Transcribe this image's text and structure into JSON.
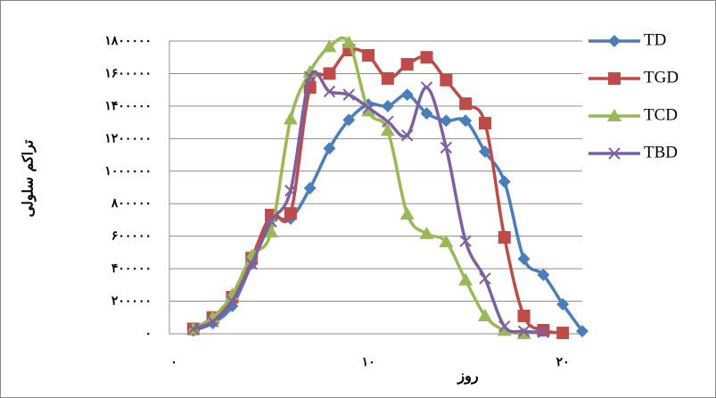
{
  "chart_data": {
    "type": "line",
    "y_label": "تراکم سلولی",
    "x_label": "روز",
    "xlim": [
      0,
      21
    ],
    "ylim": [
      0,
      1800000
    ],
    "grid": true,
    "smooth": true,
    "legend": "right",
    "xticks": [
      {
        "value": 0,
        "label": "۰"
      },
      {
        "value": 10,
        "label": "۱۰"
      },
      {
        "value": 20,
        "label": "۲۰"
      }
    ],
    "yticks": [
      {
        "value": 0,
        "label": "۰"
      },
      {
        "value": 200000,
        "label": "۲۰۰۰۰۰"
      },
      {
        "value": 400000,
        "label": "۴۰۰۰۰۰"
      },
      {
        "value": 600000,
        "label": "۶۰۰۰۰۰"
      },
      {
        "value": 800000,
        "label": "۸۰۰۰۰۰"
      },
      {
        "value": 1000000,
        "label": "۱۰۰۰۰۰۰"
      },
      {
        "value": 1200000,
        "label": "۱۲۰۰۰۰۰"
      },
      {
        "value": 1400000,
        "label": "۱۴۰۰۰۰۰"
      },
      {
        "value": 1600000,
        "label": "۱۶۰۰۰۰۰"
      },
      {
        "value": 1800000,
        "label": "۱۸۰۰۰۰۰"
      }
    ],
    "series": [
      {
        "name": "TD",
        "color": "#4a7ebb",
        "marker": "diamond",
        "x": [
          1,
          2,
          3,
          4,
          5,
          6,
          7,
          8,
          9,
          10,
          11,
          12,
          13,
          14,
          15,
          16,
          17,
          18,
          19,
          20,
          21
        ],
        "values": [
          20000,
          65000,
          170000,
          430000,
          700000,
          708000,
          895000,
          1140000,
          1315000,
          1410000,
          1400000,
          1470000,
          1355000,
          1310000,
          1310000,
          1120000,
          935000,
          460000,
          362000,
          181000,
          16000
        ]
      },
      {
        "name": "TGD",
        "color": "#be4b48",
        "marker": "square",
        "x": [
          1,
          2,
          3,
          4,
          5,
          6,
          7,
          8,
          9,
          10,
          11,
          12,
          13,
          14,
          15,
          16,
          17,
          18,
          19,
          20
        ],
        "values": [
          30000,
          100000,
          225000,
          465000,
          730000,
          740000,
          1515000,
          1600000,
          1745000,
          1712000,
          1570000,
          1657000,
          1700000,
          1560000,
          1415000,
          1295000,
          593000,
          110000,
          22000,
          5000
        ]
      },
      {
        "name": "TCD",
        "color": "#98b954",
        "marker": "triangle",
        "x": [
          1,
          2,
          3,
          4,
          5,
          6,
          7,
          8,
          9,
          10,
          11,
          12,
          13,
          14,
          15,
          16,
          17,
          18
        ],
        "values": [
          30000,
          100000,
          240000,
          480000,
          625000,
          1320000,
          1610000,
          1765000,
          1790000,
          1370000,
          1250000,
          735000,
          615000,
          565000,
          330000,
          110000,
          20000,
          0
        ]
      },
      {
        "name": "TBD",
        "color": "#7d60a0",
        "marker": "x",
        "x": [
          1,
          2,
          3,
          4,
          5,
          6,
          7,
          8,
          9,
          10,
          11,
          12,
          13,
          14,
          15,
          16,
          17,
          18,
          19
        ],
        "values": [
          30000,
          75000,
          200000,
          430000,
          690000,
          880000,
          1580000,
          1490000,
          1470000,
          1390000,
          1305000,
          1220000,
          1515000,
          1145000,
          570000,
          340000,
          45000,
          15000,
          10000
        ]
      }
    ]
  }
}
